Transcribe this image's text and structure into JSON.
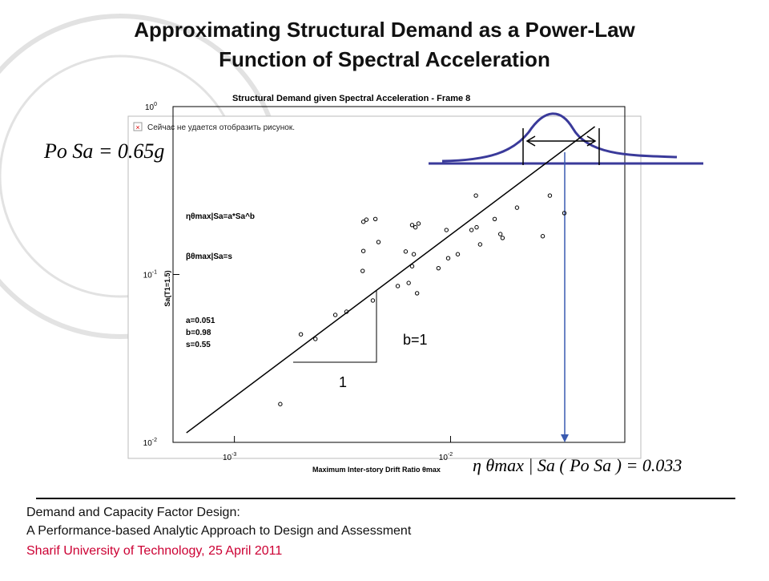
{
  "slide": {
    "title_lines": [
      "Approximating Structural Demand as a Power-Law",
      "Function of Spectral Acceleration"
    ],
    "left_formula": "Po Sa = 0.65g",
    "bottom_formula": "η θmax | Sa ( Po Sa ) = 0.033",
    "broken_image_text": "Сейчас не удается отобразить рисунок.",
    "slope_label": "b=1",
    "run_label": "1",
    "footer_lines": [
      "Demand and Capacity Factor Design:",
      "A Performance-based Analytic Approach to Design and Assessment",
      "Sharif University of Technology, 25 April 2011"
    ]
  },
  "chart_data": {
    "type": "scatter",
    "title": "Structural Demand given Spectral Acceleration - Frame 8",
    "x_label": "Maximum Inter-story Drift Ratio θmax",
    "y_label": "Sa(T1=1.5)",
    "annotations": [
      "ηθmax|Sa=a*Sa^b",
      "βθmax|Sa=s",
      "a=0.051",
      "b=0.98",
      "s=0.55"
    ],
    "log_x": true,
    "log_y": true,
    "color": "#000000",
    "xlim": [
      0.00052,
      0.064
    ],
    "ylim": [
      0.01,
      1
    ],
    "xticks": [
      {
        "value": 0.001,
        "label": "10",
        "exponent": "-3"
      },
      {
        "value": 0.01,
        "label": "10",
        "exponent": "-2"
      }
    ],
    "yticks": [
      {
        "value": 0.01,
        "label": "10",
        "exponent": "-2"
      },
      {
        "value": 0.1,
        "label": "10",
        "exponent": "-1"
      },
      {
        "value": 1,
        "label": "10",
        "exponent": "0"
      }
    ],
    "x": [
      0.00163,
      0.00203,
      0.00237,
      0.00293,
      0.0033,
      0.00392,
      0.00395,
      0.00395,
      0.00408,
      0.00449,
      0.00437,
      0.00464,
      0.0057,
      0.0062,
      0.0064,
      0.00664,
      0.00676,
      0.00664,
      0.00688,
      0.00711,
      0.007,
      0.00879,
      0.00957,
      0.00975,
      0.0108,
      0.0125,
      0.0132,
      0.0131,
      0.0137,
      0.016,
      0.017,
      0.0174,
      0.0203,
      0.0267,
      0.0288,
      0.0336
    ],
    "values": [
      0.0169,
      0.044,
      0.0413,
      0.0574,
      0.06,
      0.105,
      0.138,
      0.206,
      0.212,
      0.214,
      0.07,
      0.156,
      0.0853,
      0.137,
      0.089,
      0.112,
      0.132,
      0.197,
      0.191,
      0.201,
      0.0773,
      0.109,
      0.184,
      0.125,
      0.132,
      0.184,
      0.191,
      0.295,
      0.151,
      0.214,
      0.174,
      0.165,
      0.25,
      0.169,
      0.295,
      0.232
    ],
    "fit_line": {
      "x": [
        0.0006,
        0.0465
      ],
      "values": [
        0.0114,
        0.76
      ]
    }
  }
}
